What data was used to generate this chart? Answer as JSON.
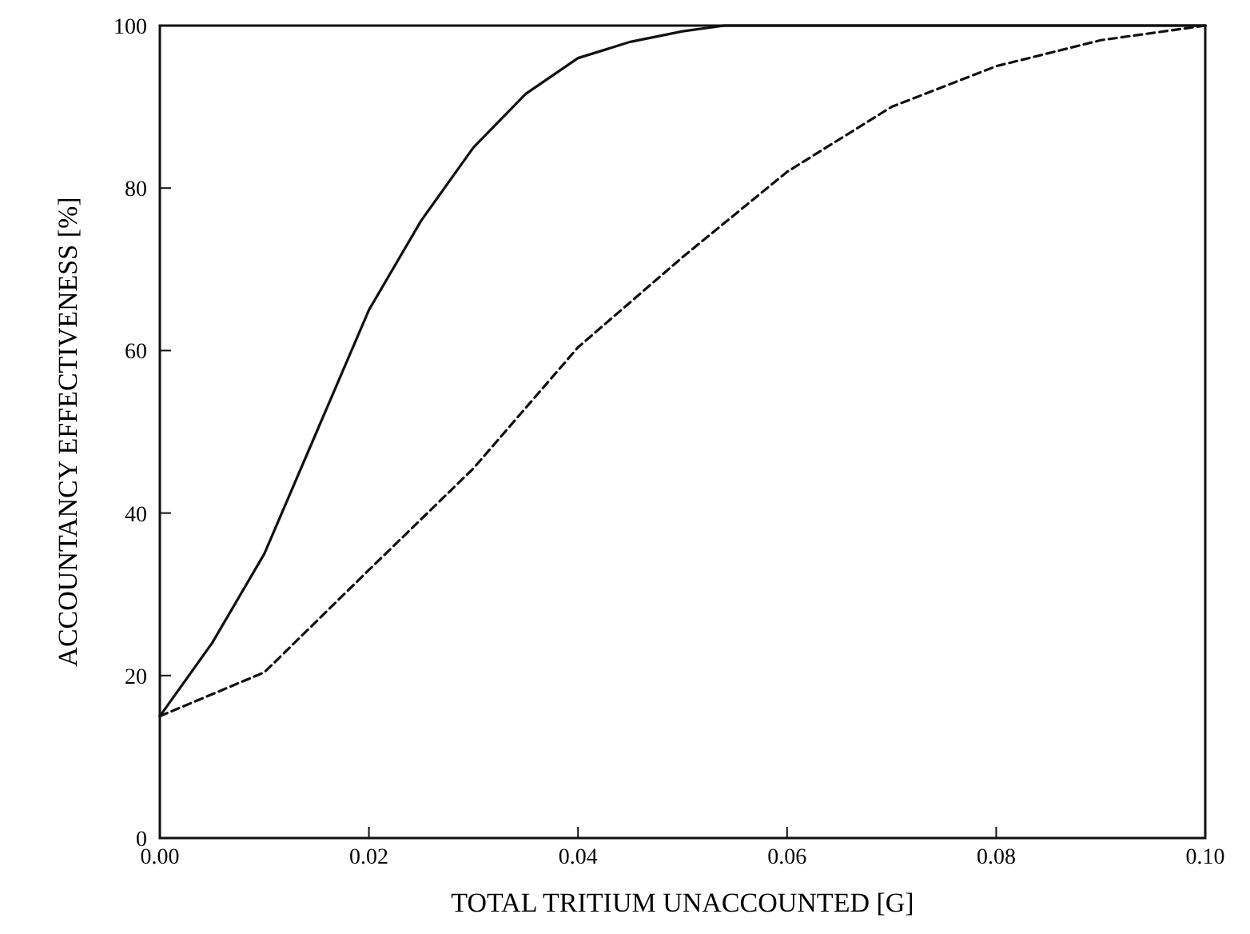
{
  "chart_data": {
    "type": "line",
    "xlabel": "TOTAL TRITIUM UNACCOUNTED [G]",
    "ylabel": "ACCOUNTANCY EFFECTIVENESS [%]",
    "xlim": [
      0,
      0.1
    ],
    "ylim": [
      0,
      100
    ],
    "xticks": [
      {
        "value": 0,
        "label": "0.00"
      },
      {
        "value": 0.02,
        "label": "0.02"
      },
      {
        "value": 0.04,
        "label": "0.04"
      },
      {
        "value": 0.06,
        "label": "0.06"
      },
      {
        "value": 0.08,
        "label": "0.08"
      },
      {
        "value": 0.1,
        "label": "0.10"
      }
    ],
    "yticks": [
      0,
      20,
      40,
      60,
      80,
      100
    ],
    "grid": false,
    "marker": "none",
    "series": [
      {
        "color": "#111111",
        "line_style": "solid",
        "x": [
          0,
          0.005,
          0.01,
          0.015,
          0.02,
          0.025,
          0.03,
          0.035,
          0.04,
          0.045,
          0.05,
          0.054,
          0.06,
          0.08,
          0.1
        ],
        "values": [
          15,
          24,
          35,
          50,
          65,
          76,
          85,
          91.6,
          96,
          98,
          99.3,
          100,
          100,
          100,
          100
        ]
      },
      {
        "color": "#111111",
        "line_style": "dashed",
        "x": [
          0,
          0.01,
          0.02,
          0.03,
          0.04,
          0.05,
          0.06,
          0.07,
          0.08,
          0.09,
          0.1
        ],
        "values": [
          15,
          20.4,
          33,
          45.5,
          60.4,
          71.5,
          82,
          90,
          95,
          98.2,
          100
        ]
      }
    ]
  }
}
